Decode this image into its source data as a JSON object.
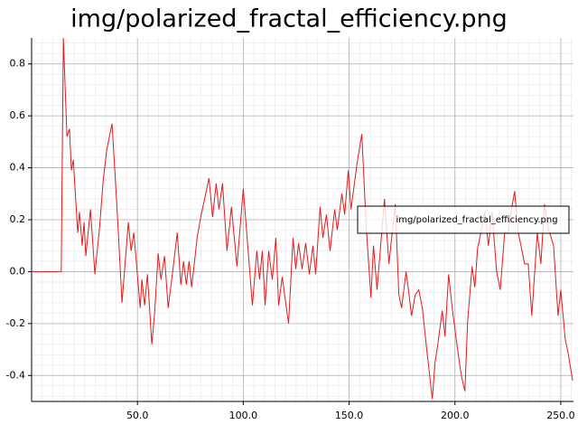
{
  "chart_data": {
    "type": "line",
    "title": "img/polarized_fractal_efficiency.png",
    "x": [
      0,
      14,
      15.0,
      16.7,
      17.9,
      18.8,
      19.7,
      21.8,
      22.6,
      23.9,
      24.8,
      25.6,
      27.8,
      29.9,
      32.1,
      33.8,
      35.5,
      38.0,
      40.6,
      42.7,
      45.7,
      47.0,
      48.3,
      51.3,
      52.1,
      53.4,
      54.7,
      56.8,
      58.1,
      59.8,
      61.1,
      62.8,
      64.5,
      66.2,
      68.8,
      70.5,
      71.8,
      73.1,
      74.4,
      75.6,
      78.2,
      79.9,
      83.8,
      85.5,
      87.2,
      88.5,
      90.2,
      92.3,
      94.4,
      97.0,
      100.0,
      102.1,
      104.3,
      106.4,
      107.7,
      109.0,
      110.3,
      112.0,
      113.7,
      115.4,
      116.7,
      118.4,
      119.7,
      121.4,
      123.5,
      124.8,
      126.1,
      127.8,
      129.5,
      131.2,
      132.9,
      134.2,
      136.3,
      137.6,
      139.3,
      141.0,
      143.2,
      144.4,
      146.6,
      147.9,
      149.6,
      150.9,
      153.8,
      156.0,
      158.1,
      160.3,
      161.5,
      163.2,
      166.7,
      168.8,
      171.8,
      173.5,
      174.8,
      176.9,
      178.2,
      179.5,
      181.2,
      182.9,
      184.6,
      186.8,
      189.3,
      190.6,
      191.9,
      194.0,
      195.3,
      197.0,
      198.7,
      200.9,
      203.0,
      204.7,
      206.0,
      208.1,
      209.4,
      210.7,
      212.0,
      214.1,
      215.8,
      217.5,
      219.7,
      221.4,
      223.5,
      225.2,
      226.5,
      228.2,
      229.9,
      231.2,
      232.9,
      234.6,
      236.3,
      238.9,
      240.6,
      242.3,
      244.0,
      246.6,
      248.7,
      250.0,
      252.1,
      253.4,
      255.6
    ],
    "series": [
      {
        "name": "img/polarized_fractal_efficiency.png",
        "color": "#e41a1c",
        "values": [
          0,
          0,
          0.9,
          0.52,
          0.55,
          0.39,
          0.43,
          0.15,
          0.23,
          0.1,
          0.19,
          0.06,
          0.24,
          -0.01,
          0.17,
          0.35,
          0.47,
          0.57,
          0.21,
          -0.12,
          0.19,
          0.08,
          0.15,
          -0.14,
          -0.03,
          -0.13,
          -0.01,
          -0.28,
          -0.16,
          0.07,
          -0.03,
          0.06,
          -0.14,
          -0.03,
          0.15,
          -0.05,
          0.04,
          -0.05,
          0.04,
          -0.06,
          0.13,
          0.21,
          0.36,
          0.21,
          0.34,
          0.24,
          0.34,
          0.08,
          0.25,
          0.02,
          0.32,
          0.1,
          -0.13,
          0.08,
          -0.03,
          0.08,
          -0.13,
          0.08,
          -0.03,
          0.13,
          -0.13,
          -0.02,
          -0.1,
          -0.2,
          0.13,
          0.01,
          0.11,
          0.01,
          0.11,
          -0.01,
          0.1,
          -0.01,
          0.25,
          0.13,
          0.22,
          0.08,
          0.24,
          0.16,
          0.3,
          0.22,
          0.39,
          0.24,
          0.42,
          0.53,
          0.17,
          -0.1,
          0.1,
          -0.07,
          0.28,
          0.03,
          0.26,
          -0.09,
          -0.14,
          0.0,
          -0.08,
          -0.17,
          -0.09,
          -0.07,
          -0.14,
          -0.31,
          -0.49,
          -0.35,
          -0.28,
          -0.15,
          -0.25,
          -0.01,
          -0.14,
          -0.28,
          -0.4,
          -0.46,
          -0.19,
          0.02,
          -0.06,
          0.09,
          0.14,
          0.23,
          0.1,
          0.23,
          0.0,
          -0.07,
          0.15,
          0.15,
          0.23,
          0.31,
          0.15,
          0.1,
          0.03,
          0.03,
          -0.17,
          0.15,
          0.03,
          0.26,
          0.17,
          0.1,
          -0.17,
          -0.07,
          -0.26,
          -0.31,
          -0.42
        ]
      }
    ],
    "xlim": [
      0,
      256
    ],
    "ylim": [
      -0.5,
      0.9
    ],
    "xticks": [
      {
        "value": 50,
        "label": "50.0"
      },
      {
        "value": 100,
        "label": "100.0"
      },
      {
        "value": 150,
        "label": "150.0"
      },
      {
        "value": 200,
        "label": "200.0"
      },
      {
        "value": 250,
        "label": "250.0"
      }
    ],
    "yticks": [
      -0.4,
      -0.2,
      {
        "value": 0,
        "label": "0.0"
      },
      0.2,
      0.4,
      0.6,
      0.8
    ],
    "grid": true,
    "legend": "right"
  }
}
